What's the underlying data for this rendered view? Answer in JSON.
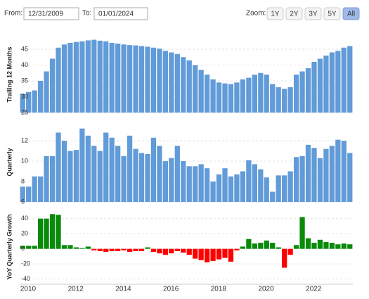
{
  "controls": {
    "from_label": "From:",
    "from_value": "12/31/2009",
    "to_label": "To:",
    "to_value": "01/01/2024",
    "zoom_label": "Zoom:",
    "zoom_buttons": [
      "1Y",
      "2Y",
      "3Y",
      "5Y",
      "All"
    ],
    "active_zoom": "All"
  },
  "chart_data": [
    {
      "type": "bar",
      "y_label": "Trailing 12 Months",
      "color": "#619bd8",
      "grid": true,
      "ylim": [
        25,
        49
      ],
      "yticks": [
        25,
        30,
        35,
        40,
        45
      ],
      "values": [
        31,
        31.5,
        32,
        35,
        38,
        42,
        45.5,
        46.5,
        47,
        47.3,
        47.5,
        47.8,
        48,
        47.7,
        47.5,
        47,
        46.8,
        46.5,
        46.3,
        46.2,
        46,
        45.8,
        45.5,
        45.2,
        44.5,
        44,
        43.5,
        42.5,
        41.5,
        40,
        38.5,
        37,
        35.5,
        34.5,
        34.2,
        34,
        34.5,
        35.5,
        36,
        37,
        37.5,
        37,
        34,
        33,
        32.5,
        33,
        37,
        38,
        39,
        41,
        42,
        43,
        44,
        44.5,
        45.5,
        46
      ]
    },
    {
      "type": "bar",
      "y_label": "Quarterly",
      "color": "#619bd8",
      "grid": true,
      "ylim": [
        6,
        13.8
      ],
      "yticks": [
        6,
        8,
        10,
        12
      ],
      "values": [
        7.5,
        7.5,
        8.5,
        8.5,
        10.5,
        10.5,
        12.8,
        12,
        11,
        11.1,
        13.2,
        12.5,
        11.5,
        11,
        12.8,
        12.3,
        11.5,
        10.5,
        12.5,
        11.2,
        10.8,
        10.7,
        12.3,
        11.5,
        10,
        10.3,
        11.5,
        10,
        9.5,
        9.5,
        9.7,
        9.3,
        8,
        8.7,
        9.3,
        8.5,
        8.7,
        9,
        10.1,
        9.7,
        9.2,
        8.4,
        7,
        8.6,
        8.6,
        9,
        10.4,
        10.5,
        11.6,
        11.3,
        10.3,
        11.2,
        11.5,
        12.1,
        12,
        10.8
      ]
    },
    {
      "type": "bar",
      "y_label": "YoY Quarterly Growth",
      "positive_color": "#0a8a0a",
      "negative_color": "#ff0000",
      "grid": true,
      "ylim": [
        -45,
        50
      ],
      "yticks": [
        -40,
        -20,
        0,
        20,
        40
      ],
      "categories": [
        "2010",
        null,
        null,
        null,
        null,
        null,
        null,
        null,
        "2012",
        null,
        null,
        null,
        null,
        null,
        null,
        null,
        "2014",
        null,
        null,
        null,
        null,
        null,
        null,
        null,
        "2016",
        null,
        null,
        null,
        null,
        null,
        null,
        null,
        "2018",
        null,
        null,
        null,
        null,
        null,
        null,
        null,
        "2020",
        null,
        null,
        null,
        null,
        null,
        null,
        null,
        "2022",
        null,
        null,
        null,
        null,
        null,
        null,
        null
      ],
      "values": [
        4,
        4,
        4,
        40,
        40,
        46,
        45,
        5,
        5,
        2,
        1,
        3,
        -2,
        -3,
        -4,
        -3,
        -3,
        -2,
        -4,
        -3,
        -3,
        2,
        -4,
        -6,
        -8,
        -6,
        -3,
        -5,
        -8,
        -13,
        -15,
        -18,
        -16,
        -14,
        -12,
        -17,
        -2,
        3,
        13,
        7,
        8,
        11,
        8,
        2,
        -25,
        -8,
        5,
        42,
        14,
        8,
        12,
        9,
        8,
        6,
        7,
        6
      ]
    }
  ]
}
